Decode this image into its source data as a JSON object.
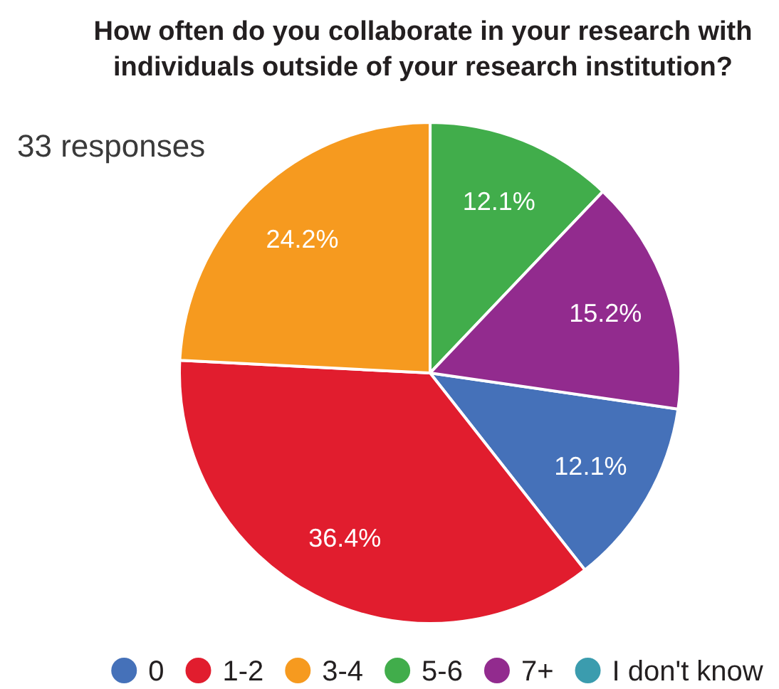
{
  "chart_data": {
    "type": "pie",
    "title": "How often do you collaborate in your research with individuals outside of your research institution?",
    "subtitle": "33 responses",
    "categories": [
      "0",
      "1-2",
      "3-4",
      "5-6",
      "7+",
      "I don't know"
    ],
    "values": [
      12.1,
      36.4,
      24.2,
      12.1,
      15.2,
      0
    ],
    "colors": [
      "#4571b9",
      "#e11d2e",
      "#f69a1f",
      "#41ad4b",
      "#922b8e",
      "#3b9cae"
    ],
    "value_labels": [
      "12.1%",
      "36.4%",
      "24.2%",
      "12.1%",
      "15.2%",
      null
    ],
    "legend": "bottom"
  }
}
